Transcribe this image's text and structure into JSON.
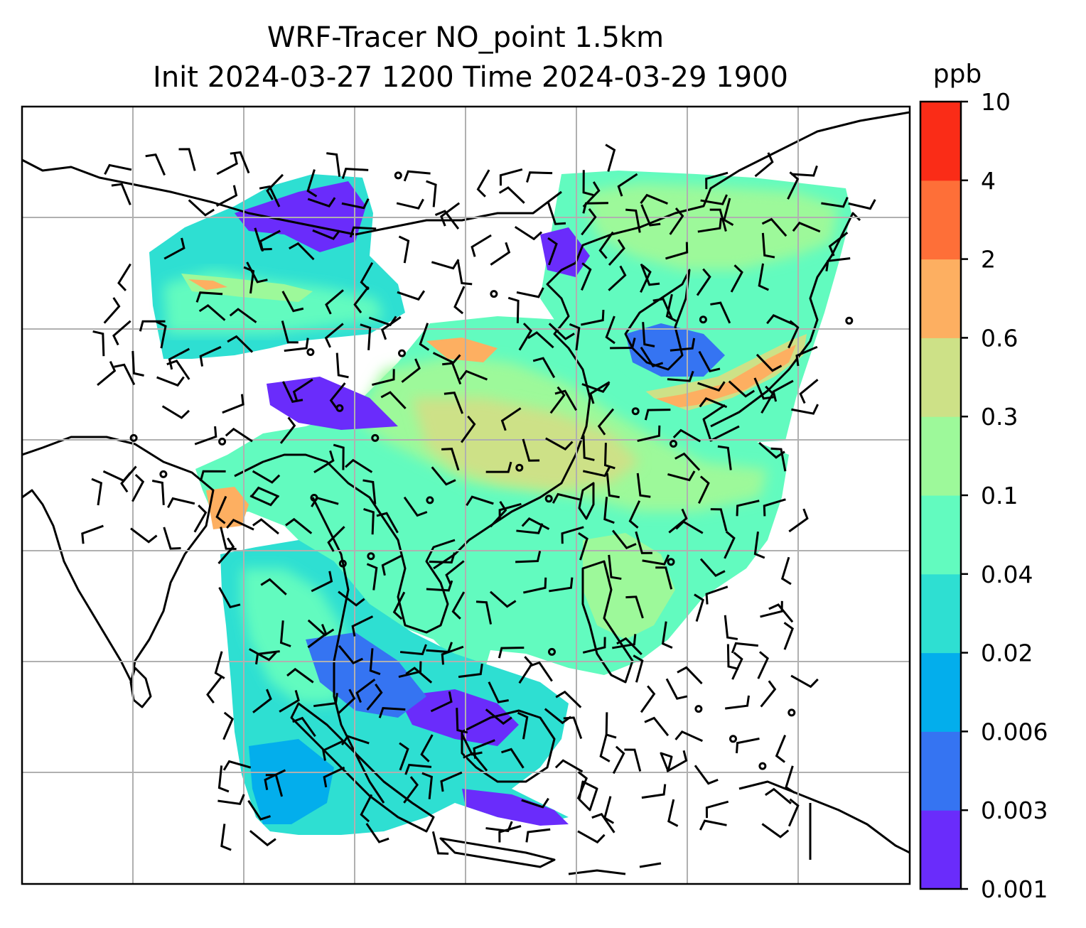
{
  "figure": {
    "title_line1": "WRF-Tracer NO_point 1.5km",
    "title_line2": "Init 2024-03-27 1200 Time 2024-03-29 1900"
  },
  "colorbar": {
    "unit": "ppb",
    "levels": [
      "0.001",
      "0.003",
      "0.006",
      "0.02",
      "0.04",
      "0.1",
      "0.3",
      "0.6",
      "2",
      "4",
      "10"
    ],
    "colors": [
      "#6a2cfb",
      "#3574f2",
      "#03aeec",
      "#2edfd2",
      "#62fbbf",
      "#9df99a",
      "#cde187",
      "#fdaf61",
      "#fe6f38",
      "#fa2c17"
    ]
  },
  "map": {
    "background": "#ffffff",
    "gridline_color": "#b0b0b0",
    "coastline_color": "#000000",
    "barb_color": "#000000"
  }
}
